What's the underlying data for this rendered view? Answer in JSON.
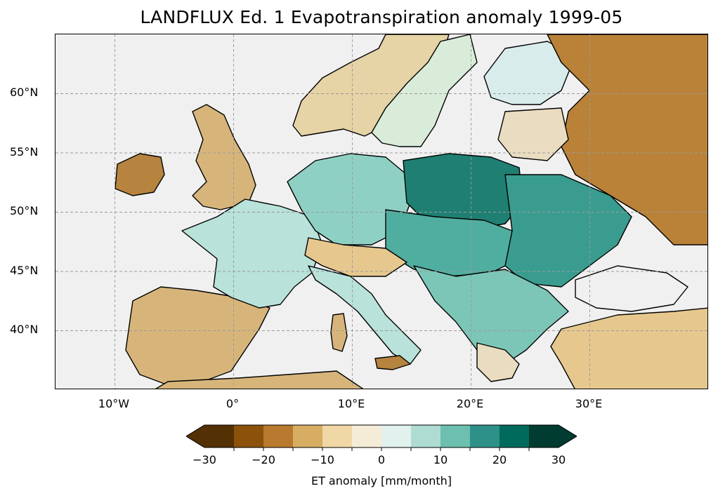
{
  "title": "LANDFLUX Ed. 1 Evapotranspiration anomaly 1999-05",
  "y_ticks": [
    "60°N",
    "55°N",
    "50°N",
    "45°N",
    "40°N"
  ],
  "x_ticks": [
    "10°W",
    "0°",
    "10°E",
    "20°E",
    "30°E"
  ],
  "colorbar": {
    "label": "ET anomaly [mm/month]",
    "ticks": [
      "−30",
      "−20",
      "−10",
      "0",
      "10",
      "20",
      "30"
    ],
    "bins": [
      -30,
      -25,
      -20,
      -15,
      -10,
      -5,
      0,
      5,
      10,
      15,
      20,
      25,
      30
    ],
    "colors": [
      "#543005",
      "#8c510a",
      "#b87a2e",
      "#d6ad63",
      "#efd8a6",
      "#f5ecd8",
      "#e0f1ee",
      "#aedcd3",
      "#6dbfb0",
      "#2e9189",
      "#006a5d",
      "#003c30"
    ],
    "extend": "both"
  },
  "map": {
    "extent_lon": [
      -15,
      40
    ],
    "extent_lat": [
      35,
      65
    ],
    "background": "#f0f0f0",
    "coastline_color": "#000000"
  }
}
